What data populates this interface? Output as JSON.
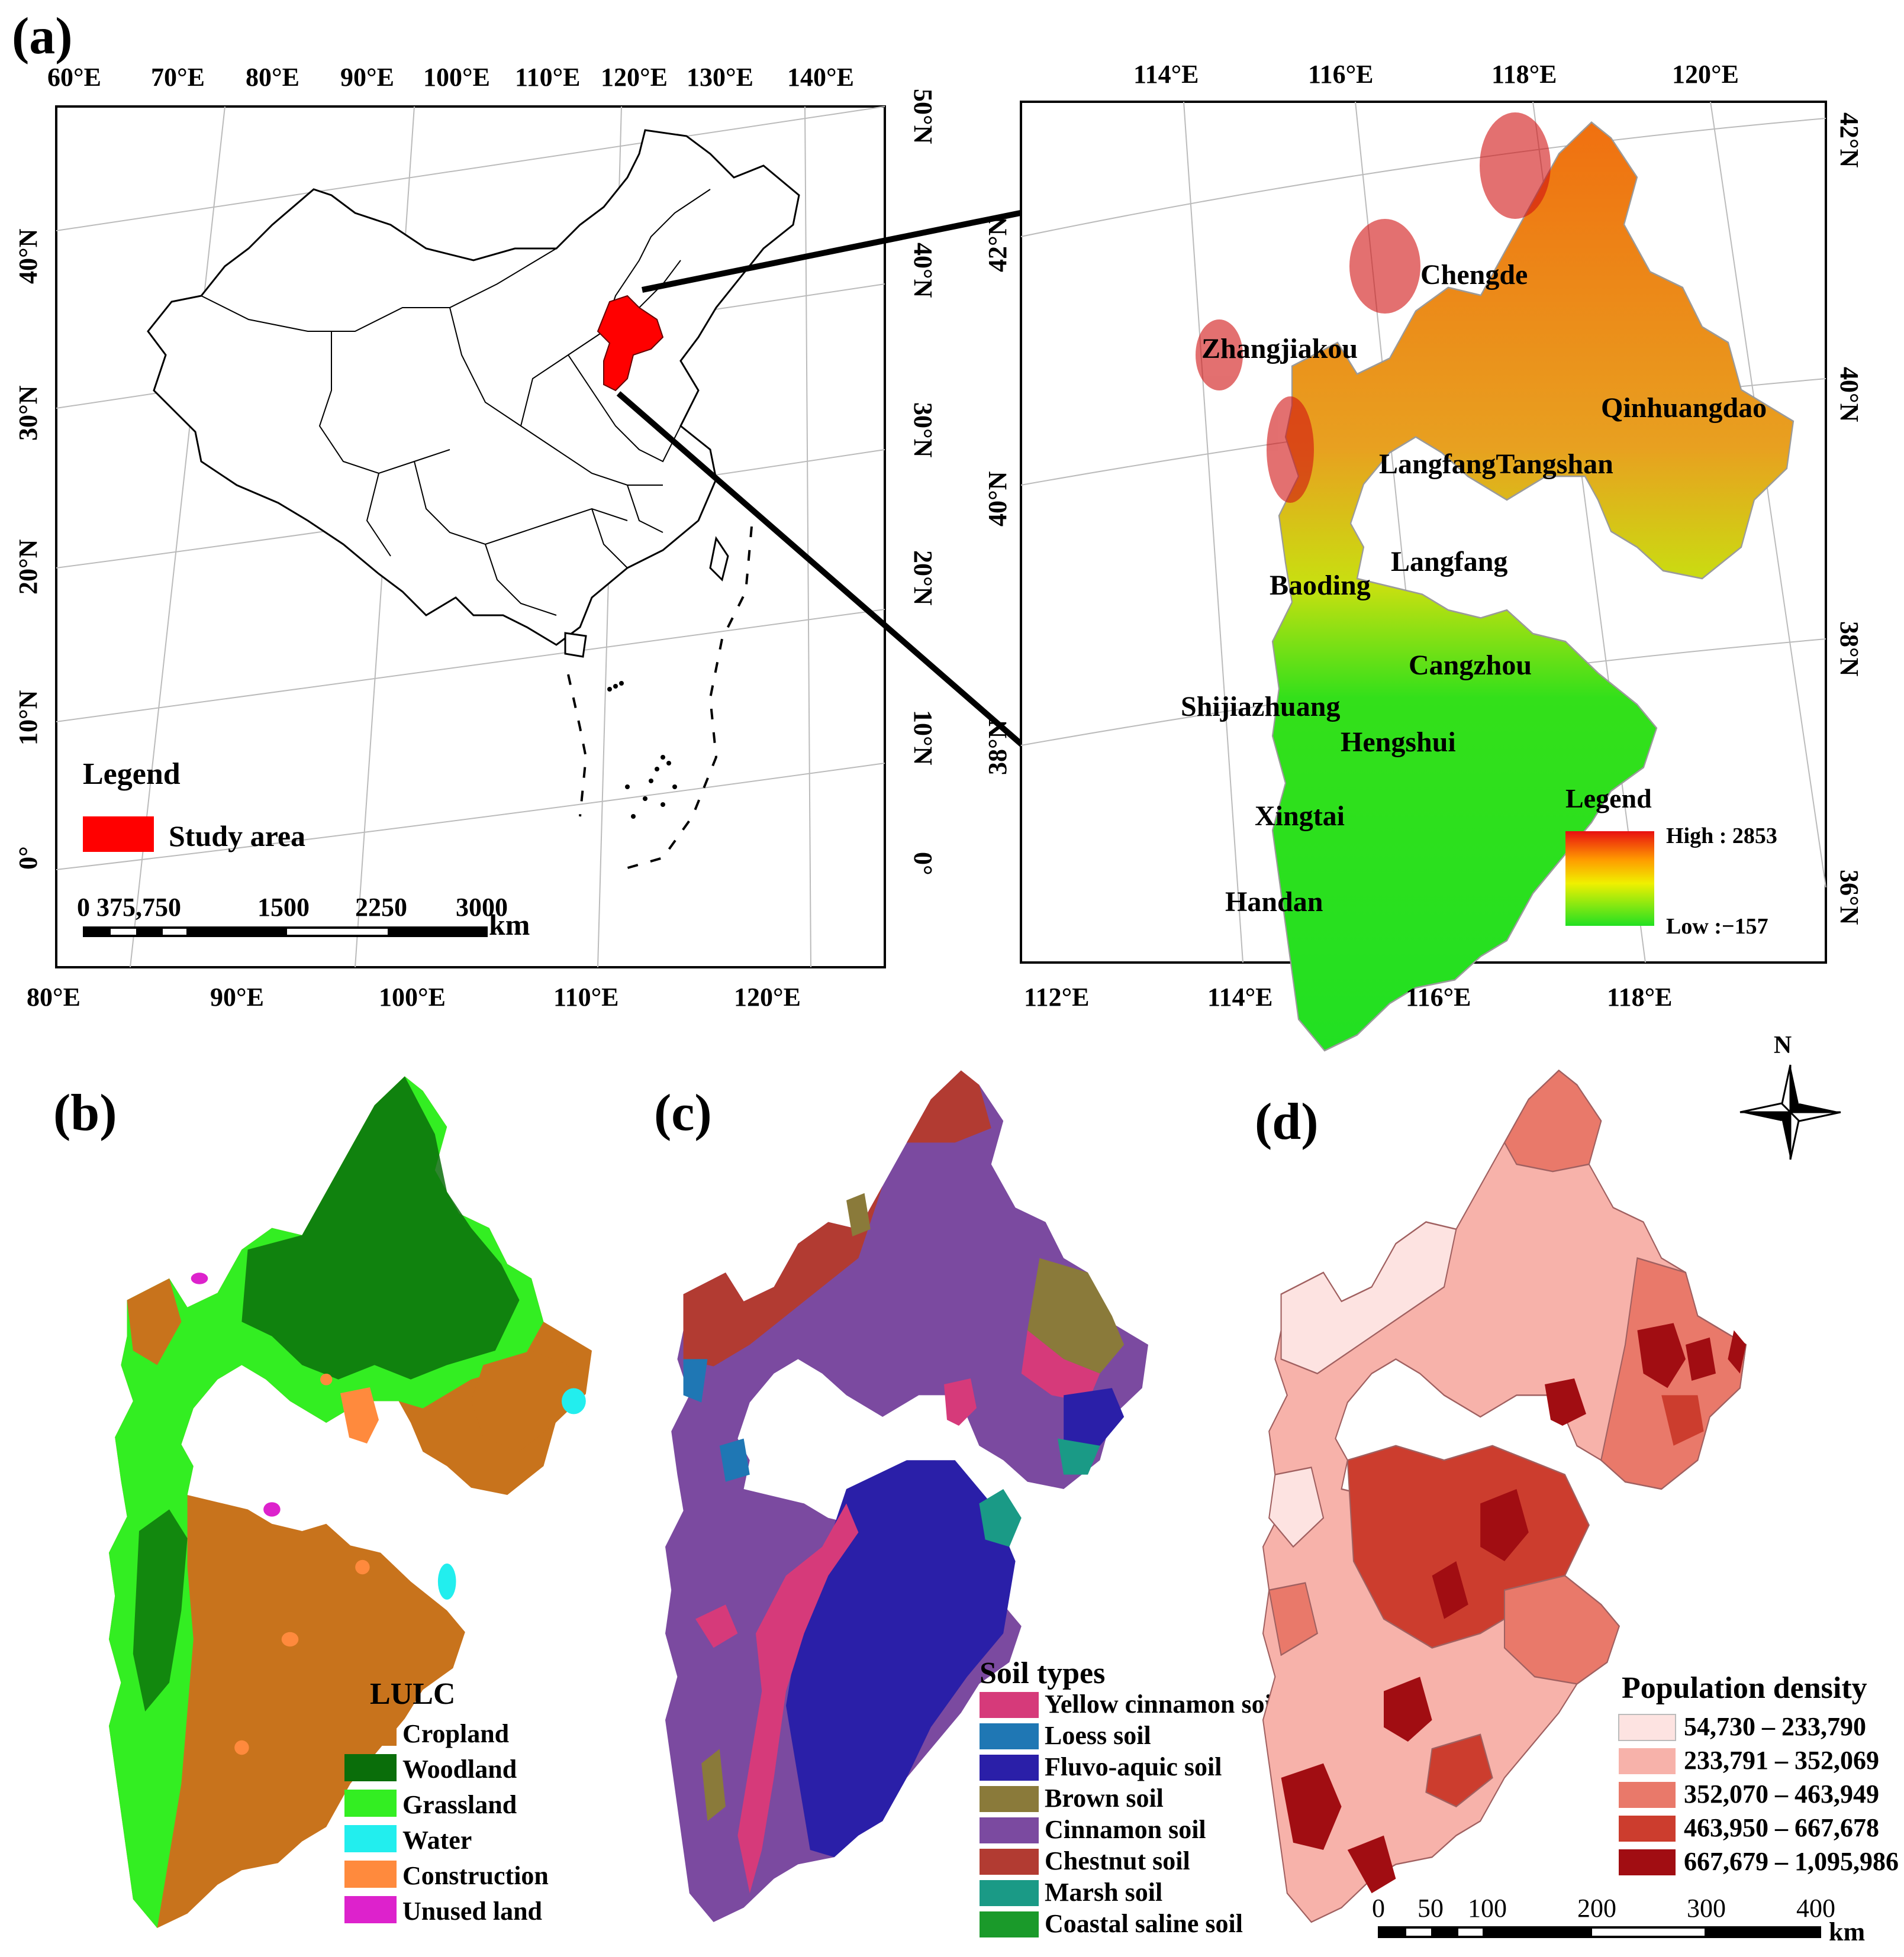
{
  "panels": {
    "a": "(a)",
    "b": "(b)",
    "c": "(c)",
    "d": "(d)"
  },
  "china_map": {
    "top_ticks": [
      "60°E",
      "70°E",
      "80°E",
      "90°E",
      "100°E",
      "110°E",
      "120°E",
      "130°E",
      "140°E"
    ],
    "bottom_ticks": [
      "80°E",
      "90°E",
      "100°E",
      "110°E",
      "120°E"
    ],
    "left_ticks": [
      "40°N",
      "30°N",
      "20°N",
      "10°N",
      "0°"
    ],
    "right_ticks": [
      "50°N",
      "40°N",
      "30°N",
      "20°N",
      "10°N",
      "0°"
    ],
    "legend_title": "Legend",
    "legend_item": "Study area",
    "scale_labels": [
      "0 375,750",
      "1500",
      "2250",
      "3000"
    ],
    "scale_unit": "km",
    "study_color": "#ff0000"
  },
  "dem_map": {
    "top_ticks": [
      "114°E",
      "116°E",
      "118°E",
      "120°E"
    ],
    "bottom_ticks": [
      "112°E",
      "114°E",
      "116°E",
      "118°E"
    ],
    "left_ticks": [
      "42°N",
      "40°N",
      "38°N"
    ],
    "right_ticks": [
      "42°N",
      "40°N",
      "38°N",
      "36°N"
    ],
    "cities": [
      "Chengde",
      "Zhangjiakou",
      "Qinhuangdao",
      "LangfangTangshan",
      "Langfang",
      "Baoding",
      "Cangzhou",
      "Shijiazhuang",
      "Hengshui",
      "Xingtai",
      "Handan"
    ],
    "legend_title": "Legend",
    "high_label": "High : 2853",
    "low_label": "Low :−157"
  },
  "lulc": {
    "title": "LULC",
    "items": [
      {
        "label": "Cropland",
        "color": "#c8731c"
      },
      {
        "label": "Woodland",
        "color": "#0a6e0a"
      },
      {
        "label": "Grassland",
        "color": "#33ee22"
      },
      {
        "label": "Water",
        "color": "#22eeee"
      },
      {
        "label": "Construction",
        "color": "#ff8a3d"
      },
      {
        "label": "Unused land",
        "color": "#dd22cc"
      }
    ]
  },
  "soil": {
    "title": "Soil types",
    "items": [
      {
        "label": "Yellow cinnamon soil",
        "color": "#d63a7a"
      },
      {
        "label": "Loess soil",
        "color": "#1f77b4"
      },
      {
        "label": "Fluvo-aquic soil",
        "color": "#2a1fa8"
      },
      {
        "label": "Brown soil",
        "color": "#8a7a3a"
      },
      {
        "label": "Cinnamon soil",
        "color": "#7b4aa0"
      },
      {
        "label": "Chestnut soil",
        "color": "#b23b32"
      },
      {
        "label": "Marsh soil",
        "color": "#1a9a86"
      },
      {
        "label": "Coastal saline soil",
        "color": "#1a9a2a"
      }
    ]
  },
  "population": {
    "title": "Population density",
    "items": [
      {
        "label": "54,730 – 233,790",
        "color": "#fde3e1"
      },
      {
        "label": "233,791 – 352,069",
        "color": "#f7b2aa"
      },
      {
        "label": "352,070 – 463,949",
        "color": "#e9796a"
      },
      {
        "label": "463,950 – 667,678",
        "color": "#cc3d2e"
      },
      {
        "label": "667,679 – 1,095,986",
        "color": "#a10d12"
      }
    ],
    "north": "N",
    "scale_labels": [
      "0",
      "50",
      "100",
      "200",
      "300",
      "400"
    ],
    "scale_unit": "km"
  }
}
